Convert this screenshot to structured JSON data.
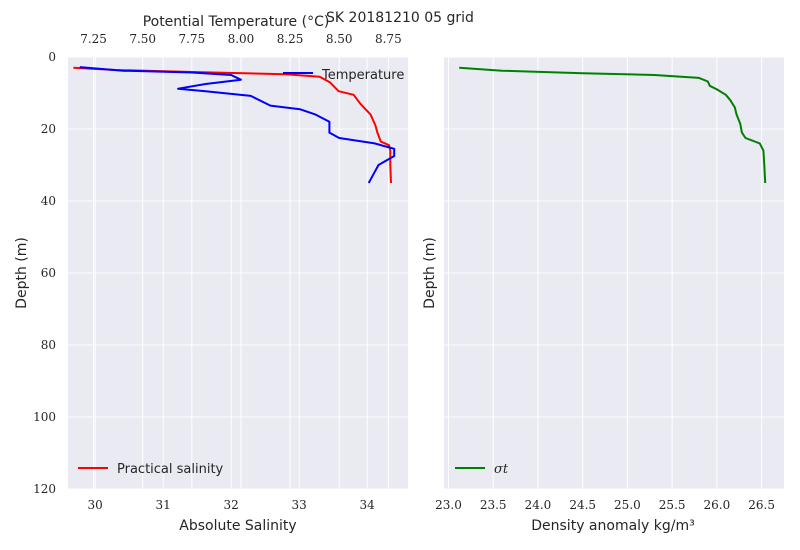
{
  "suptitle": "SK 20181210 05 grid",
  "chart_data": [
    {
      "type": "line",
      "panel": "left",
      "xlabel": "Absolute Salinity",
      "xlim": [
        29.6,
        34.6
      ],
      "xticks": [
        30,
        31,
        32,
        33,
        34
      ],
      "ylabel": "Depth (m)",
      "ylim": [
        120,
        0
      ],
      "yticks": [
        0,
        20,
        40,
        60,
        80,
        100,
        120
      ],
      "grid": true,
      "legend_position": "lower-left",
      "series": [
        {
          "name": "Practical salinity",
          "color": "#ff0000",
          "points": [
            [
              29.68,
              3
            ],
            [
              30.3,
              3.6
            ],
            [
              31.5,
              4.2
            ],
            [
              32.8,
              4.8
            ],
            [
              33.3,
              5.5
            ],
            [
              33.45,
              7
            ],
            [
              33.58,
              9.5
            ],
            [
              33.8,
              10.5
            ],
            [
              33.9,
              13
            ],
            [
              34.05,
              16
            ],
            [
              34.12,
              19
            ],
            [
              34.15,
              21
            ],
            [
              34.2,
              23.5
            ],
            [
              34.32,
              24.5
            ],
            [
              34.34,
              26
            ],
            [
              34.34,
              30
            ],
            [
              34.35,
              35
            ]
          ]
        }
      ]
    },
    {
      "type": "line",
      "panel": "left-top-axis",
      "xlabel": "Potential Temperature (°C)",
      "xlim": [
        7.12,
        8.85
      ],
      "xticks": [
        7.25,
        7.5,
        7.75,
        8.0,
        8.25,
        8.5,
        8.75
      ],
      "xtick_labels": [
        "7.25",
        "7.50",
        "7.75",
        "8.00",
        "8.25",
        "8.50",
        "8.75"
      ],
      "legend_position": "upper-right",
      "series": [
        {
          "name": "Temperature",
          "color": "#0000ff",
          "points": [
            [
              7.18,
              2.8
            ],
            [
              7.4,
              3.8
            ],
            [
              7.75,
              4.3
            ],
            [
              7.95,
              5
            ],
            [
              8.0,
              6.3
            ],
            [
              7.82,
              7.5
            ],
            [
              7.68,
              8.8
            ],
            [
              7.82,
              9.5
            ],
            [
              8.05,
              10.8
            ],
            [
              8.15,
              13.5
            ],
            [
              8.3,
              14.5
            ],
            [
              8.38,
              16
            ],
            [
              8.45,
              18
            ],
            [
              8.45,
              21
            ],
            [
              8.5,
              22.5
            ],
            [
              8.68,
              24
            ],
            [
              8.78,
              25.5
            ],
            [
              8.78,
              27.5
            ],
            [
              8.7,
              30
            ],
            [
              8.67,
              33
            ],
            [
              8.65,
              35
            ]
          ]
        }
      ]
    },
    {
      "type": "line",
      "panel": "right",
      "xlabel": "Density anomaly kg/m³",
      "xlim": [
        22.95,
        26.75
      ],
      "xticks": [
        23.0,
        23.5,
        24.0,
        24.5,
        25.0,
        25.5,
        26.0,
        26.5
      ],
      "xtick_labels": [
        "23.0",
        "23.5",
        "24.0",
        "24.5",
        "25.0",
        "25.5",
        "26.0",
        "26.5"
      ],
      "ylabel": "Depth (m)",
      "ylim": [
        120,
        0
      ],
      "grid": true,
      "legend_position": "lower-left",
      "series": [
        {
          "name": "σt",
          "color": "#008000",
          "points": [
            [
              23.12,
              3
            ],
            [
              23.6,
              3.8
            ],
            [
              24.5,
              4.5
            ],
            [
              25.3,
              5
            ],
            [
              25.8,
              5.8
            ],
            [
              25.9,
              6.8
            ],
            [
              25.92,
              8
            ],
            [
              26.0,
              9
            ],
            [
              26.1,
              10.5
            ],
            [
              26.15,
              12
            ],
            [
              26.2,
              14
            ],
            [
              26.22,
              16
            ],
            [
              26.26,
              18.5
            ],
            [
              26.28,
              21
            ],
            [
              26.32,
              22.5
            ],
            [
              26.48,
              24
            ],
            [
              26.52,
              26
            ],
            [
              26.53,
              30
            ],
            [
              26.54,
              35
            ]
          ]
        }
      ]
    }
  ]
}
